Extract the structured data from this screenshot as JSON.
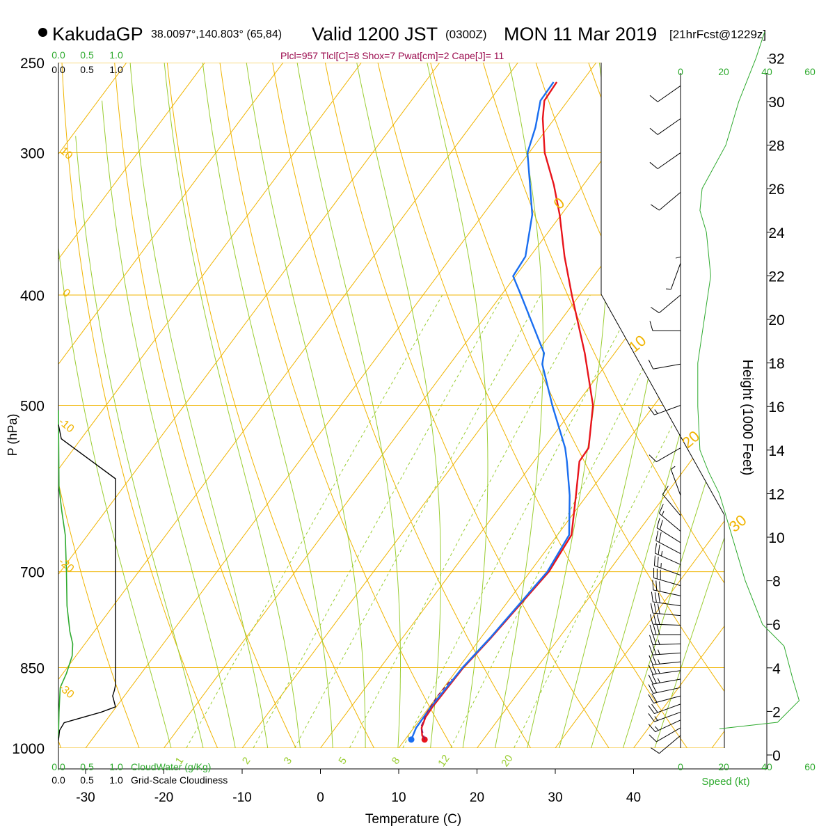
{
  "header": {
    "station": "KakudaGP",
    "coords": "38.0097°,140.803° (65,84)",
    "valid": "Valid 1200 JST",
    "valid_z": "(0300Z)",
    "date": "MON 11 Mar 2019",
    "forecast": "[21hrFcst@1229z]",
    "params": "Plcl=957 Tlcl[C]=8 Shox=7 Pwat[cm]=2 Cape[J]= 11"
  },
  "colors": {
    "temperature": "#e8141b",
    "dewpoint": "#1a6ef0",
    "parcel": "#8a1a6a",
    "isobar_isotherm": "#f0b400",
    "mixing_ratio": "#9acd32",
    "cloud_water": "#2eaa2e",
    "cloudiness": "#000000",
    "param_text": "#9b0b4e"
  },
  "chart_data": {
    "type": "line",
    "subtype": "skew-T log-P sounding",
    "xlabel": "Temperature (C)",
    "ylabel": "P (hPa)",
    "right_ylabel": "Height (1000 Feet)",
    "x_ticks": [
      -30,
      -20,
      -10,
      0,
      10,
      20,
      30,
      40
    ],
    "pressure_ticks": [
      250,
      300,
      400,
      500,
      700,
      850,
      1000
    ],
    "height_ticks": [
      0,
      2,
      4,
      6,
      8,
      10,
      12,
      14,
      16,
      18,
      20,
      22,
      24,
      26,
      28,
      30,
      32
    ],
    "isotherm_labels": [
      {
        "text": "10",
        "p": 300,
        "t": -33
      },
      {
        "text": "0",
        "p": 398,
        "t": -33
      },
      {
        "text": "-10",
        "p": 520,
        "t": -33
      },
      {
        "text": "-20",
        "p": 690,
        "t": -33
      },
      {
        "text": "-30",
        "p": 890,
        "t": -33
      }
    ],
    "right_isotherm_labels": [
      {
        "text": "0",
        "p": 335
      },
      {
        "text": "10",
        "p": 445
      },
      {
        "text": "20",
        "p": 540
      },
      {
        "text": "30",
        "p": 640
      }
    ],
    "mixing_ratio_labels": [
      "1",
      "2",
      "3",
      "5",
      "8",
      "12",
      "20"
    ],
    "mixing_ratio_values": [
      1,
      2,
      3,
      5,
      8,
      12,
      20
    ],
    "series": [
      {
        "name": "Temperature",
        "points": [
          [
            983,
            12.5
          ],
          [
            975,
            11.8
          ],
          [
            960,
            11.0
          ],
          [
            940,
            10.5
          ],
          [
            920,
            10.4
          ],
          [
            850,
            10.6
          ],
          [
            800,
            11.3
          ],
          [
            700,
            12.4
          ],
          [
            650,
            11.8
          ],
          [
            600,
            8.6
          ],
          [
            560,
            5.8
          ],
          [
            545,
            5.7
          ],
          [
            500,
            2.2
          ],
          [
            450,
            -3.8
          ],
          [
            400,
            -11.0
          ],
          [
            370,
            -15.6
          ],
          [
            340,
            -20.2
          ],
          [
            320,
            -23.8
          ],
          [
            300,
            -28.0
          ],
          [
            280,
            -31.5
          ],
          [
            270,
            -33.0
          ],
          [
            260,
            -33.2
          ]
        ],
        "surface_marker": true
      },
      {
        "name": "Dewpoint",
        "points": [
          [
            983,
            10.8
          ],
          [
            960,
            10.3
          ],
          [
            920,
            10.2
          ],
          [
            850,
            10.5
          ],
          [
            800,
            11.2
          ],
          [
            700,
            12.2
          ],
          [
            650,
            11.5
          ],
          [
            600,
            7.8
          ],
          [
            560,
            4.2
          ],
          [
            545,
            2.7
          ],
          [
            500,
            -3.0
          ],
          [
            460,
            -8.2
          ],
          [
            450,
            -9.0
          ],
          [
            400,
            -17.5
          ],
          [
            385,
            -20.3
          ],
          [
            370,
            -20.6
          ],
          [
            340,
            -23.7
          ],
          [
            300,
            -30.2
          ],
          [
            285,
            -31.6
          ],
          [
            270,
            -33.5
          ],
          [
            260,
            -33.6
          ]
        ],
        "surface_marker": true
      },
      {
        "name": "Parcel",
        "dashed": true,
        "points": [
          [
            983,
            12.5
          ],
          [
            957,
            10.8
          ],
          [
            930,
            10.2
          ],
          [
            900,
            10.0
          ],
          [
            870,
            10.2
          ]
        ]
      }
    ],
    "cloud_water": {
      "xlabel": "CloudWater (g/Kg)",
      "ticks": [
        "0.0",
        "0.5",
        "1.0"
      ],
      "points": [
        [
          505,
          0.0
        ],
        [
          590,
          0.01
        ],
        [
          620,
          0.06
        ],
        [
          650,
          0.12
        ],
        [
          700,
          0.14
        ],
        [
          750,
          0.15
        ],
        [
          790,
          0.2
        ],
        [
          810,
          0.25
        ],
        [
          830,
          0.24
        ],
        [
          860,
          0.14
        ],
        [
          885,
          0.03
        ],
        [
          930,
          0.01
        ],
        [
          980,
          0.0
        ]
      ]
    },
    "cloudiness": {
      "xlabel": "Grid-Scale Cloudiness",
      "ticks": [
        "0.0",
        "0.5",
        "1.0"
      ],
      "top_ticks": [
        "0.0",
        "0.5",
        "1.0"
      ],
      "points": [
        [
          520,
          0.0
        ],
        [
          535,
          0.05
        ],
        [
          580,
          1.0
        ],
        [
          880,
          1.0
        ],
        [
          890,
          0.98
        ],
        [
          900,
          0.95
        ],
        [
          920,
          1.0
        ],
        [
          930,
          0.75
        ],
        [
          950,
          0.1
        ],
        [
          965,
          0.02
        ],
        [
          985,
          0.0
        ]
      ]
    },
    "wind": {
      "xlabel": "Speed (kt)",
      "speed_ticks": [
        0,
        20,
        40,
        60
      ],
      "profile_kft": [
        [
          1.2,
          18
        ],
        [
          1.5,
          45
        ],
        [
          2.5,
          55
        ],
        [
          3.5,
          52
        ],
        [
          5,
          48
        ],
        [
          6,
          38
        ],
        [
          7,
          34
        ],
        [
          8,
          30
        ],
        [
          9,
          27
        ],
        [
          10,
          24
        ],
        [
          12,
          18
        ],
        [
          13,
          13
        ],
        [
          14,
          9
        ],
        [
          16,
          8
        ],
        [
          18,
          8
        ],
        [
          20,
          11
        ],
        [
          22,
          14
        ],
        [
          24,
          12
        ],
        [
          25,
          9
        ],
        [
          26,
          10
        ],
        [
          28,
          21
        ],
        [
          30,
          27
        ],
        [
          32,
          35
        ],
        [
          33.2,
          39
        ]
      ],
      "barbs": [
        {
          "p": 975,
          "spd": 10,
          "dir": 230
        },
        {
          "p": 960,
          "spd": 13,
          "dir": 240
        },
        {
          "p": 945,
          "spd": 16,
          "dir": 245
        },
        {
          "p": 930,
          "spd": 18,
          "dir": 250
        },
        {
          "p": 915,
          "spd": 20,
          "dir": 250
        },
        {
          "p": 900,
          "spd": 22,
          "dir": 255
        },
        {
          "p": 885,
          "spd": 24,
          "dir": 258
        },
        {
          "p": 870,
          "spd": 25,
          "dir": 260
        },
        {
          "p": 855,
          "spd": 26,
          "dir": 262
        },
        {
          "p": 840,
          "spd": 27,
          "dir": 264
        },
        {
          "p": 825,
          "spd": 28,
          "dir": 266
        },
        {
          "p": 810,
          "spd": 29,
          "dir": 268
        },
        {
          "p": 795,
          "spd": 30,
          "dir": 270
        },
        {
          "p": 780,
          "spd": 31,
          "dir": 272
        },
        {
          "p": 765,
          "spd": 32,
          "dir": 275
        },
        {
          "p": 750,
          "spd": 32,
          "dir": 278
        },
        {
          "p": 735,
          "spd": 31,
          "dir": 282
        },
        {
          "p": 720,
          "spd": 30,
          "dir": 286
        },
        {
          "p": 705,
          "spd": 28,
          "dir": 290
        },
        {
          "p": 690,
          "spd": 26,
          "dir": 294
        },
        {
          "p": 675,
          "spd": 23,
          "dir": 298
        },
        {
          "p": 660,
          "spd": 20,
          "dir": 302
        },
        {
          "p": 645,
          "spd": 16,
          "dir": 310
        },
        {
          "p": 625,
          "spd": 12,
          "dir": 320
        },
        {
          "p": 600,
          "spd": 8,
          "dir": 340
        },
        {
          "p": 545,
          "spd": 12,
          "dir": 240
        },
        {
          "p": 500,
          "spd": 16,
          "dir": 250
        },
        {
          "p": 460,
          "spd": 14,
          "dir": 260
        },
        {
          "p": 430,
          "spd": 10,
          "dir": 270
        },
        {
          "p": 400,
          "spd": 12,
          "dir": 230
        },
        {
          "p": 375,
          "spd": 8,
          "dir": 200
        },
        {
          "p": 350,
          "spd": 6,
          "dir": 180
        },
        {
          "p": 325,
          "spd": 10,
          "dir": 230
        },
        {
          "p": 300,
          "spd": 14,
          "dir": 235
        },
        {
          "p": 280,
          "spd": 14,
          "dir": 235
        },
        {
          "p": 262,
          "spd": 14,
          "dir": 235
        }
      ]
    }
  }
}
